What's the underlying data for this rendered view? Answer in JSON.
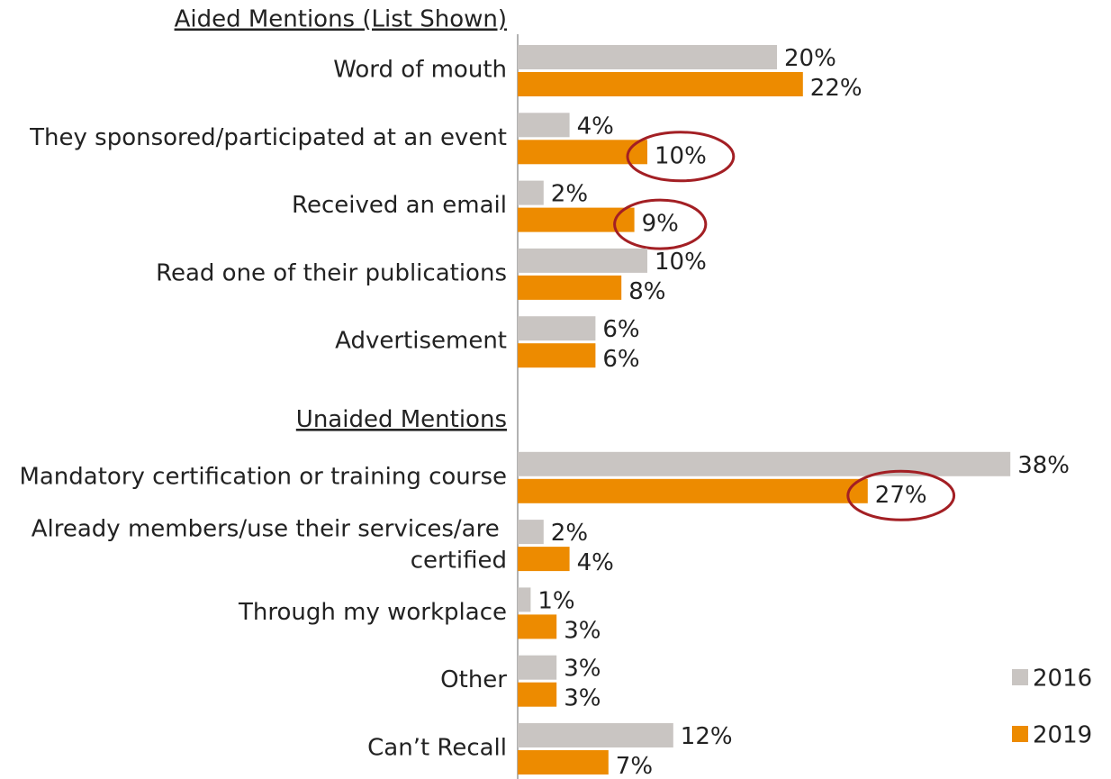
{
  "chart_data": {
    "type": "hbar",
    "group_headers": [
      "Aided Mentions (List Shown)",
      "Unaided Mentions"
    ],
    "categories": [
      "Word of mouth",
      "They sponsored/participated at an event",
      "Received an email",
      "Read one of their publications",
      "Advertisement",
      "Mandatory certification or training course",
      "Already members/use their services/are certified",
      "Through my workplace",
      "Other",
      "Can’t Recall"
    ],
    "series": [
      {
        "name": "2016",
        "color": "#c9c5c2",
        "values": [
          20,
          4,
          2,
          10,
          6,
          38,
          2,
          1,
          3,
          12
        ],
        "value_labels": [
          "20%",
          "4%",
          "2%",
          "10%",
          "6%",
          "38%",
          "2%",
          "1%",
          "3%",
          "12%"
        ]
      },
      {
        "name": "2019",
        "color": "#ed8b00",
        "values": [
          22,
          10,
          9,
          8,
          6,
          27,
          4,
          3,
          3,
          7
        ],
        "value_labels": [
          "22%",
          "10%",
          "9%",
          "8%",
          "6%",
          "27%",
          "4%",
          "3%",
          "3%",
          "7%"
        ],
        "circled": [
          1,
          2,
          5
        ]
      }
    ],
    "highlight_color": "#a31f24",
    "legend": "bottom-right"
  }
}
